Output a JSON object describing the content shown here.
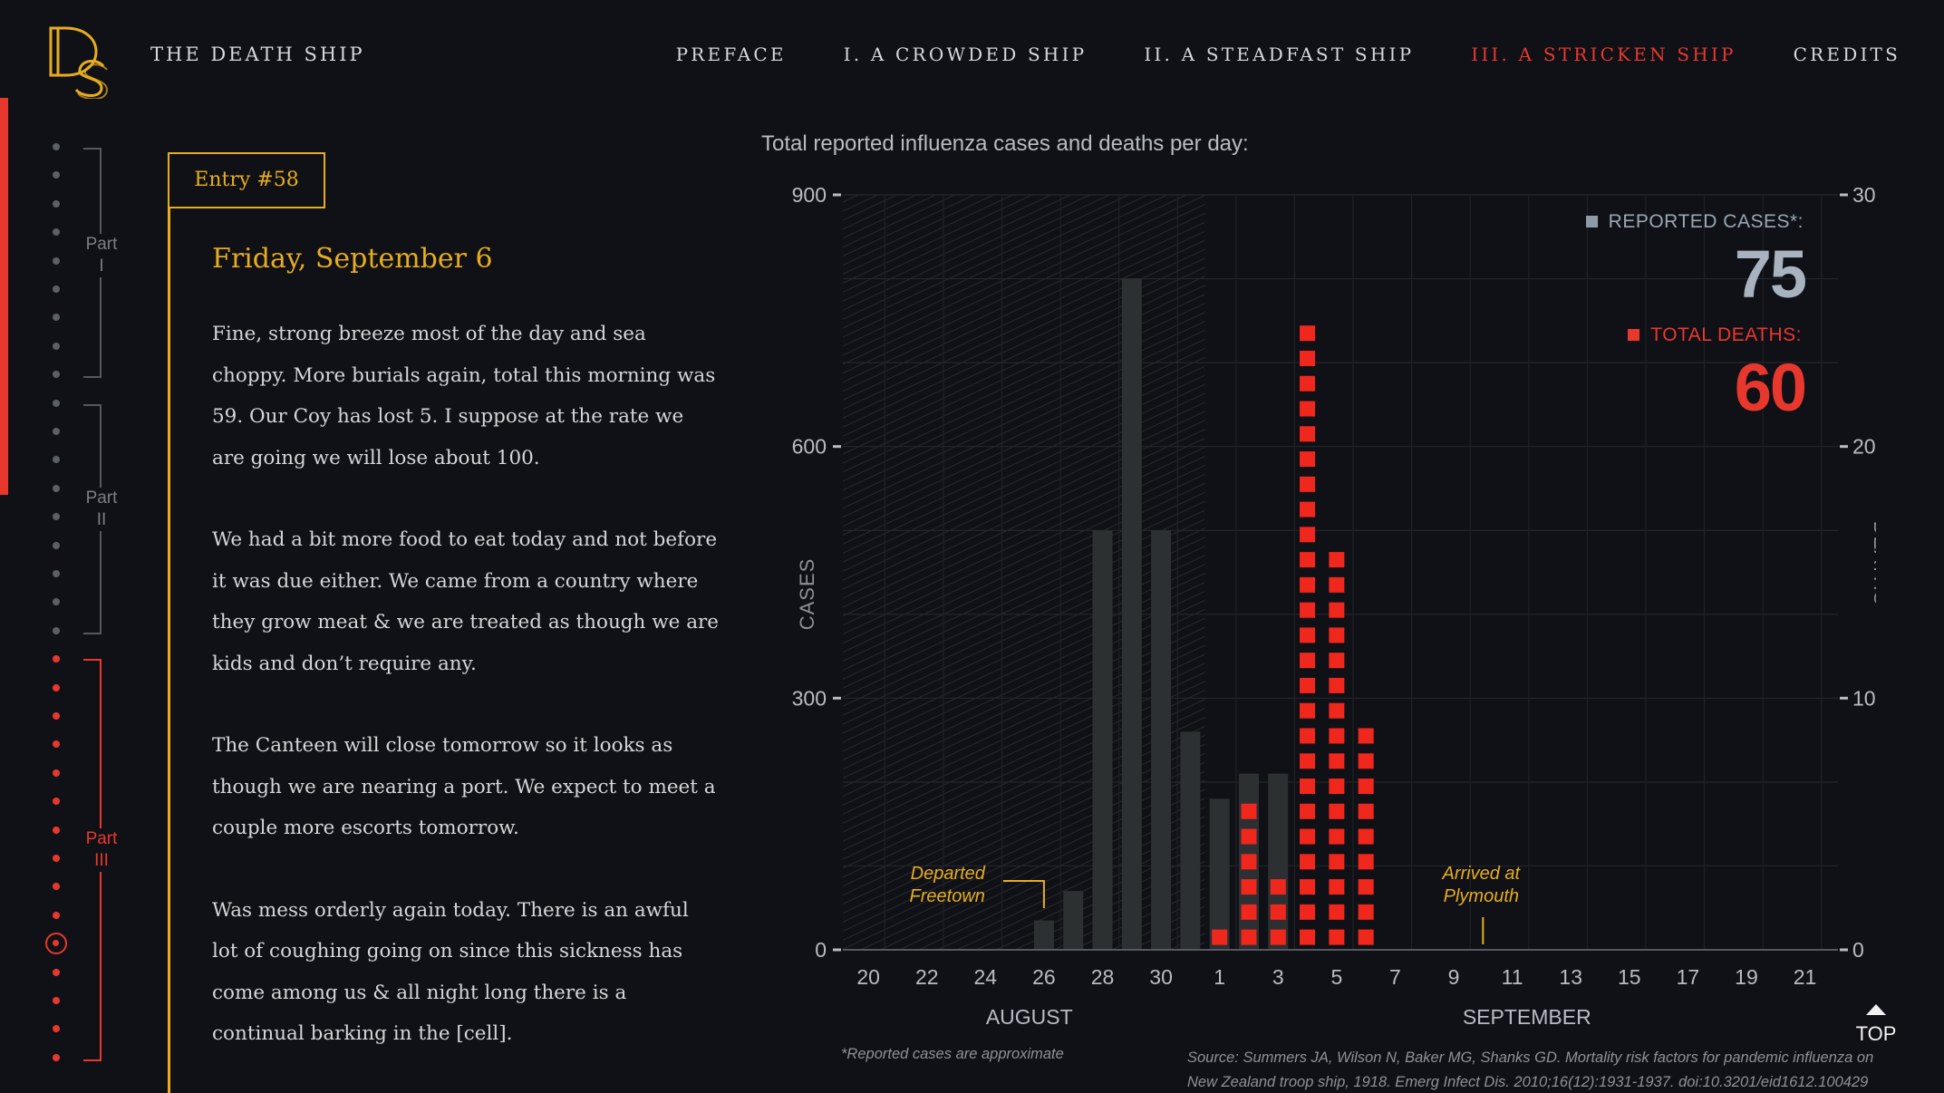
{
  "header": {
    "logo_text": "DS",
    "site_title": "THE DEATH SHIP",
    "nav": [
      {
        "label": "PREFACE",
        "active": false
      },
      {
        "label": "I. A CROWDED SHIP",
        "active": false
      },
      {
        "label": "II. A STEADFAST SHIP",
        "active": false
      },
      {
        "label": "III. A STRICKEN SHIP",
        "active": true
      },
      {
        "label": "CREDITS",
        "active": false
      }
    ]
  },
  "sidebar": {
    "parts": [
      {
        "label": "Part",
        "numeral": "I"
      },
      {
        "label": "Part",
        "numeral": "II"
      },
      {
        "label": "Part",
        "numeral": "III"
      }
    ],
    "accent_color": "#e8382e"
  },
  "entry": {
    "badge": "Entry #58",
    "date": "Friday, September 6",
    "paragraphs": [
      "Fine, strong breeze most of the day and sea choppy. More burials again, total this morning was 59. Our Coy has lost 5. I suppose at the rate we are going we will lose about 100.",
      "We had a bit more food to eat today and not before it was due either. We came from a country where they grow meat & we are treated as though we are kids and don’t require any.",
      "The Canteen will close tomorrow so it looks as though we are nearing a port. We expect to meet a couple more escorts tomorrow.",
      "Was mess orderly again today. There is an awful lot of coughing going on since this sickness has come among us & all night long there is a continual barking in the [cell]."
    ]
  },
  "counters": {
    "cases_label": "REPORTED CASES*:",
    "cases_value": "75",
    "deaths_label": "TOTAL DEATHS:",
    "deaths_value": "60"
  },
  "chart_data": {
    "type": "bar",
    "title": "Total reported influenza cases and deaths per day:",
    "ylabel_left": "CASES",
    "ylabel_right": "DEATHS",
    "ylim_cases": [
      0,
      900
    ],
    "ylim_deaths": [
      0,
      30
    ],
    "yticks_cases": [
      "0",
      "300",
      "600",
      "900"
    ],
    "yticks_deaths": [
      "0",
      "10",
      "20",
      "30"
    ],
    "days": [
      "Aug 20",
      "Aug 21",
      "Aug 22",
      "Aug 23",
      "Aug 24",
      "Aug 25",
      "Aug 26",
      "Aug 27",
      "Aug 28",
      "Aug 29",
      "Aug 30",
      "Aug 31",
      "Sep 1",
      "Sep 2",
      "Sep 3",
      "Sep 4",
      "Sep 5",
      "Sep 6",
      "Sep 7",
      "Sep 8",
      "Sep 9",
      "Sep 10",
      "Sep 11",
      "Sep 12",
      "Sep 13",
      "Sep 14",
      "Sep 15",
      "Sep 16",
      "Sep 17",
      "Sep 18",
      "Sep 19",
      "Sep 20",
      "Sep 21",
      "Sep 22"
    ],
    "xtick_labels": [
      "20",
      "22",
      "24",
      "26",
      "28",
      "30",
      "1",
      "3",
      "5",
      "7",
      "9",
      "11",
      "13",
      "15",
      "17",
      "19",
      "21"
    ],
    "month_labels": [
      "AUGUST",
      "SEPTEMBER"
    ],
    "series": [
      {
        "name": "REPORTED CASES*",
        "color": "#2d3033",
        "values": [
          0,
          0,
          0,
          0,
          0,
          0,
          35,
          70,
          500,
          800,
          500,
          260,
          180,
          210,
          210,
          0,
          0,
          0,
          0,
          0,
          0,
          0,
          0,
          0,
          0,
          0,
          0,
          0,
          0,
          0,
          0,
          0,
          0,
          0
        ]
      },
      {
        "name": "TOTAL DEATHS",
        "color": "#f0271c",
        "values": [
          0,
          0,
          0,
          0,
          0,
          0,
          0,
          0,
          0,
          0,
          0,
          0,
          1,
          6,
          3,
          25,
          16,
          9,
          0,
          0,
          0,
          0,
          0,
          0,
          0,
          0,
          0,
          0,
          0,
          0,
          0,
          0,
          0,
          0
        ]
      }
    ],
    "annotations": [
      {
        "text": [
          "Departed",
          "Freetown"
        ],
        "day": "Aug 26",
        "color": "#e7ad1f"
      },
      {
        "text": [
          "Arrived at",
          "Plymouth"
        ],
        "day": "Sep 10",
        "color": "#e7ad1f"
      }
    ],
    "shaded_range": [
      "Aug 20",
      "Aug 31"
    ],
    "grid": true,
    "footnote": "*Reported cases are approximate",
    "source": "Source: Summers JA, Wilson N, Baker MG, Shanks GD. Mortality risk factors for pandemic influenza on New Zealand troop ship, 1918. Emerg Infect Dis. 2010;16(12):1931-1937. doi:10.3201/eid1612.100429"
  },
  "top_button": {
    "label": "TOP"
  }
}
